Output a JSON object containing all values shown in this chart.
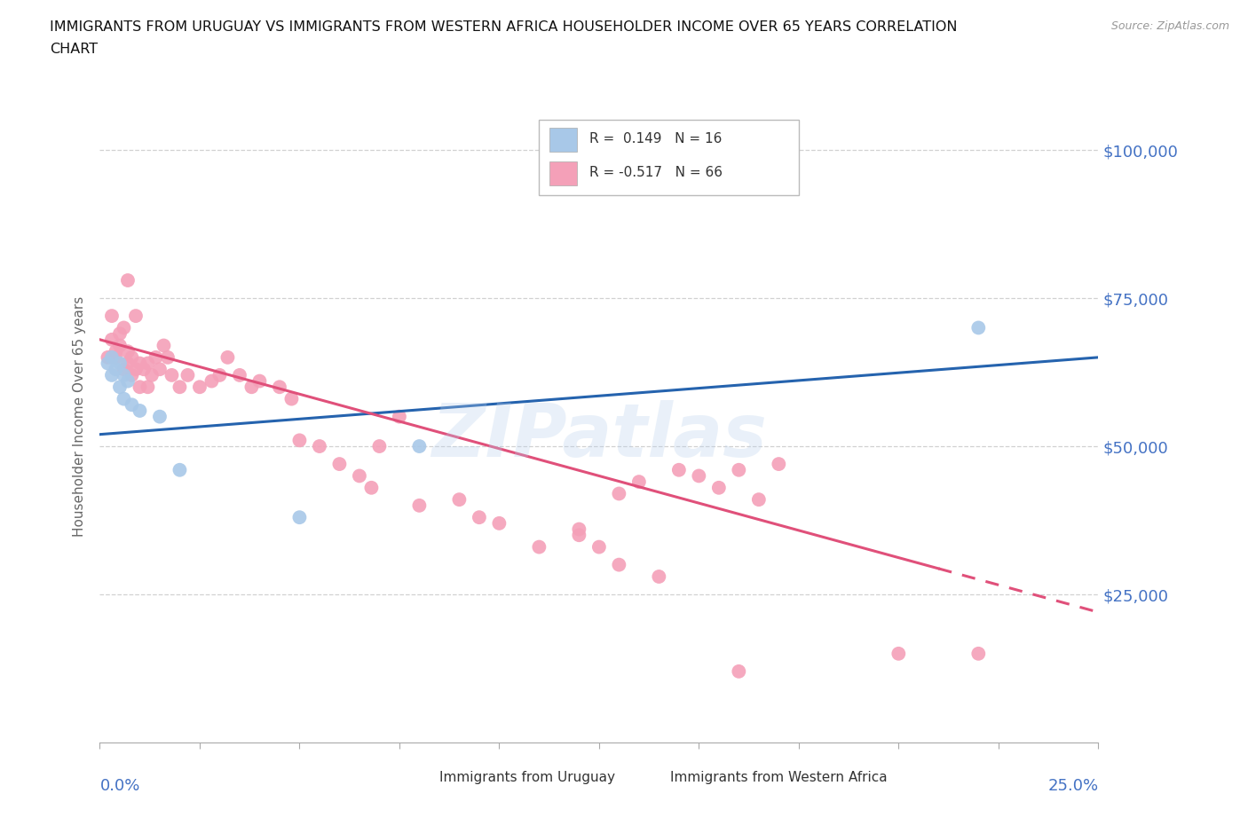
{
  "title_line1": "IMMIGRANTS FROM URUGUAY VS IMMIGRANTS FROM WESTERN AFRICA HOUSEHOLDER INCOME OVER 65 YEARS CORRELATION",
  "title_line2": "CHART",
  "source": "Source: ZipAtlas.com",
  "ylabel": "Householder Income Over 65 years",
  "xlim": [
    0.0,
    0.25
  ],
  "ylim": [
    0,
    110000
  ],
  "yticks": [
    0,
    25000,
    50000,
    75000,
    100000
  ],
  "ytick_labels": [
    "",
    "$25,000",
    "$50,000",
    "$75,000",
    "$100,000"
  ],
  "watermark": "ZIPatlas",
  "color_uruguay": "#a8c8e8",
  "color_w_africa": "#f4a0b8",
  "color_blue_text": "#4472c4",
  "bg_color": "#ffffff",
  "grid_color": "#cccccc",
  "uruguay_x": [
    0.002,
    0.003,
    0.003,
    0.004,
    0.005,
    0.005,
    0.006,
    0.006,
    0.007,
    0.008,
    0.01,
    0.015,
    0.02,
    0.05,
    0.08,
    0.22
  ],
  "uruguay_y": [
    64000,
    65000,
    62000,
    63000,
    64000,
    60000,
    62000,
    58000,
    61000,
    57000,
    56000,
    55000,
    46000,
    38000,
    50000,
    70000
  ],
  "w_africa_x": [
    0.002,
    0.003,
    0.003,
    0.004,
    0.004,
    0.005,
    0.005,
    0.006,
    0.006,
    0.007,
    0.007,
    0.007,
    0.008,
    0.008,
    0.009,
    0.009,
    0.01,
    0.01,
    0.011,
    0.012,
    0.012,
    0.013,
    0.014,
    0.015,
    0.016,
    0.017,
    0.018,
    0.02,
    0.022,
    0.025,
    0.028,
    0.03,
    0.032,
    0.035,
    0.038,
    0.04,
    0.045,
    0.048,
    0.05,
    0.055,
    0.06,
    0.065,
    0.068,
    0.07,
    0.075,
    0.08,
    0.09,
    0.095,
    0.1,
    0.11,
    0.12,
    0.13,
    0.14,
    0.15,
    0.16,
    0.17,
    0.13,
    0.135,
    0.145,
    0.155,
    0.165,
    0.12,
    0.125,
    0.16,
    0.2,
    0.22
  ],
  "w_africa_y": [
    65000,
    68000,
    72000,
    66000,
    65000,
    67000,
    69000,
    63000,
    70000,
    64000,
    66000,
    78000,
    62000,
    65000,
    63000,
    72000,
    64000,
    60000,
    63000,
    64000,
    60000,
    62000,
    65000,
    63000,
    67000,
    65000,
    62000,
    60000,
    62000,
    60000,
    61000,
    62000,
    65000,
    62000,
    60000,
    61000,
    60000,
    58000,
    51000,
    50000,
    47000,
    45000,
    43000,
    50000,
    55000,
    40000,
    41000,
    38000,
    37000,
    33000,
    35000,
    30000,
    28000,
    45000,
    46000,
    47000,
    42000,
    44000,
    46000,
    43000,
    41000,
    36000,
    33000,
    12000,
    15000,
    15000
  ],
  "trend_blue_x0": 0.0,
  "trend_blue_y0": 52000,
  "trend_blue_x1": 0.25,
  "trend_blue_y1": 65000,
  "trend_pink_x0": 0.0,
  "trend_pink_y0": 68000,
  "trend_pink_x1": 0.25,
  "trend_pink_y1": 22000,
  "trend_pink_solid_end": 0.21
}
